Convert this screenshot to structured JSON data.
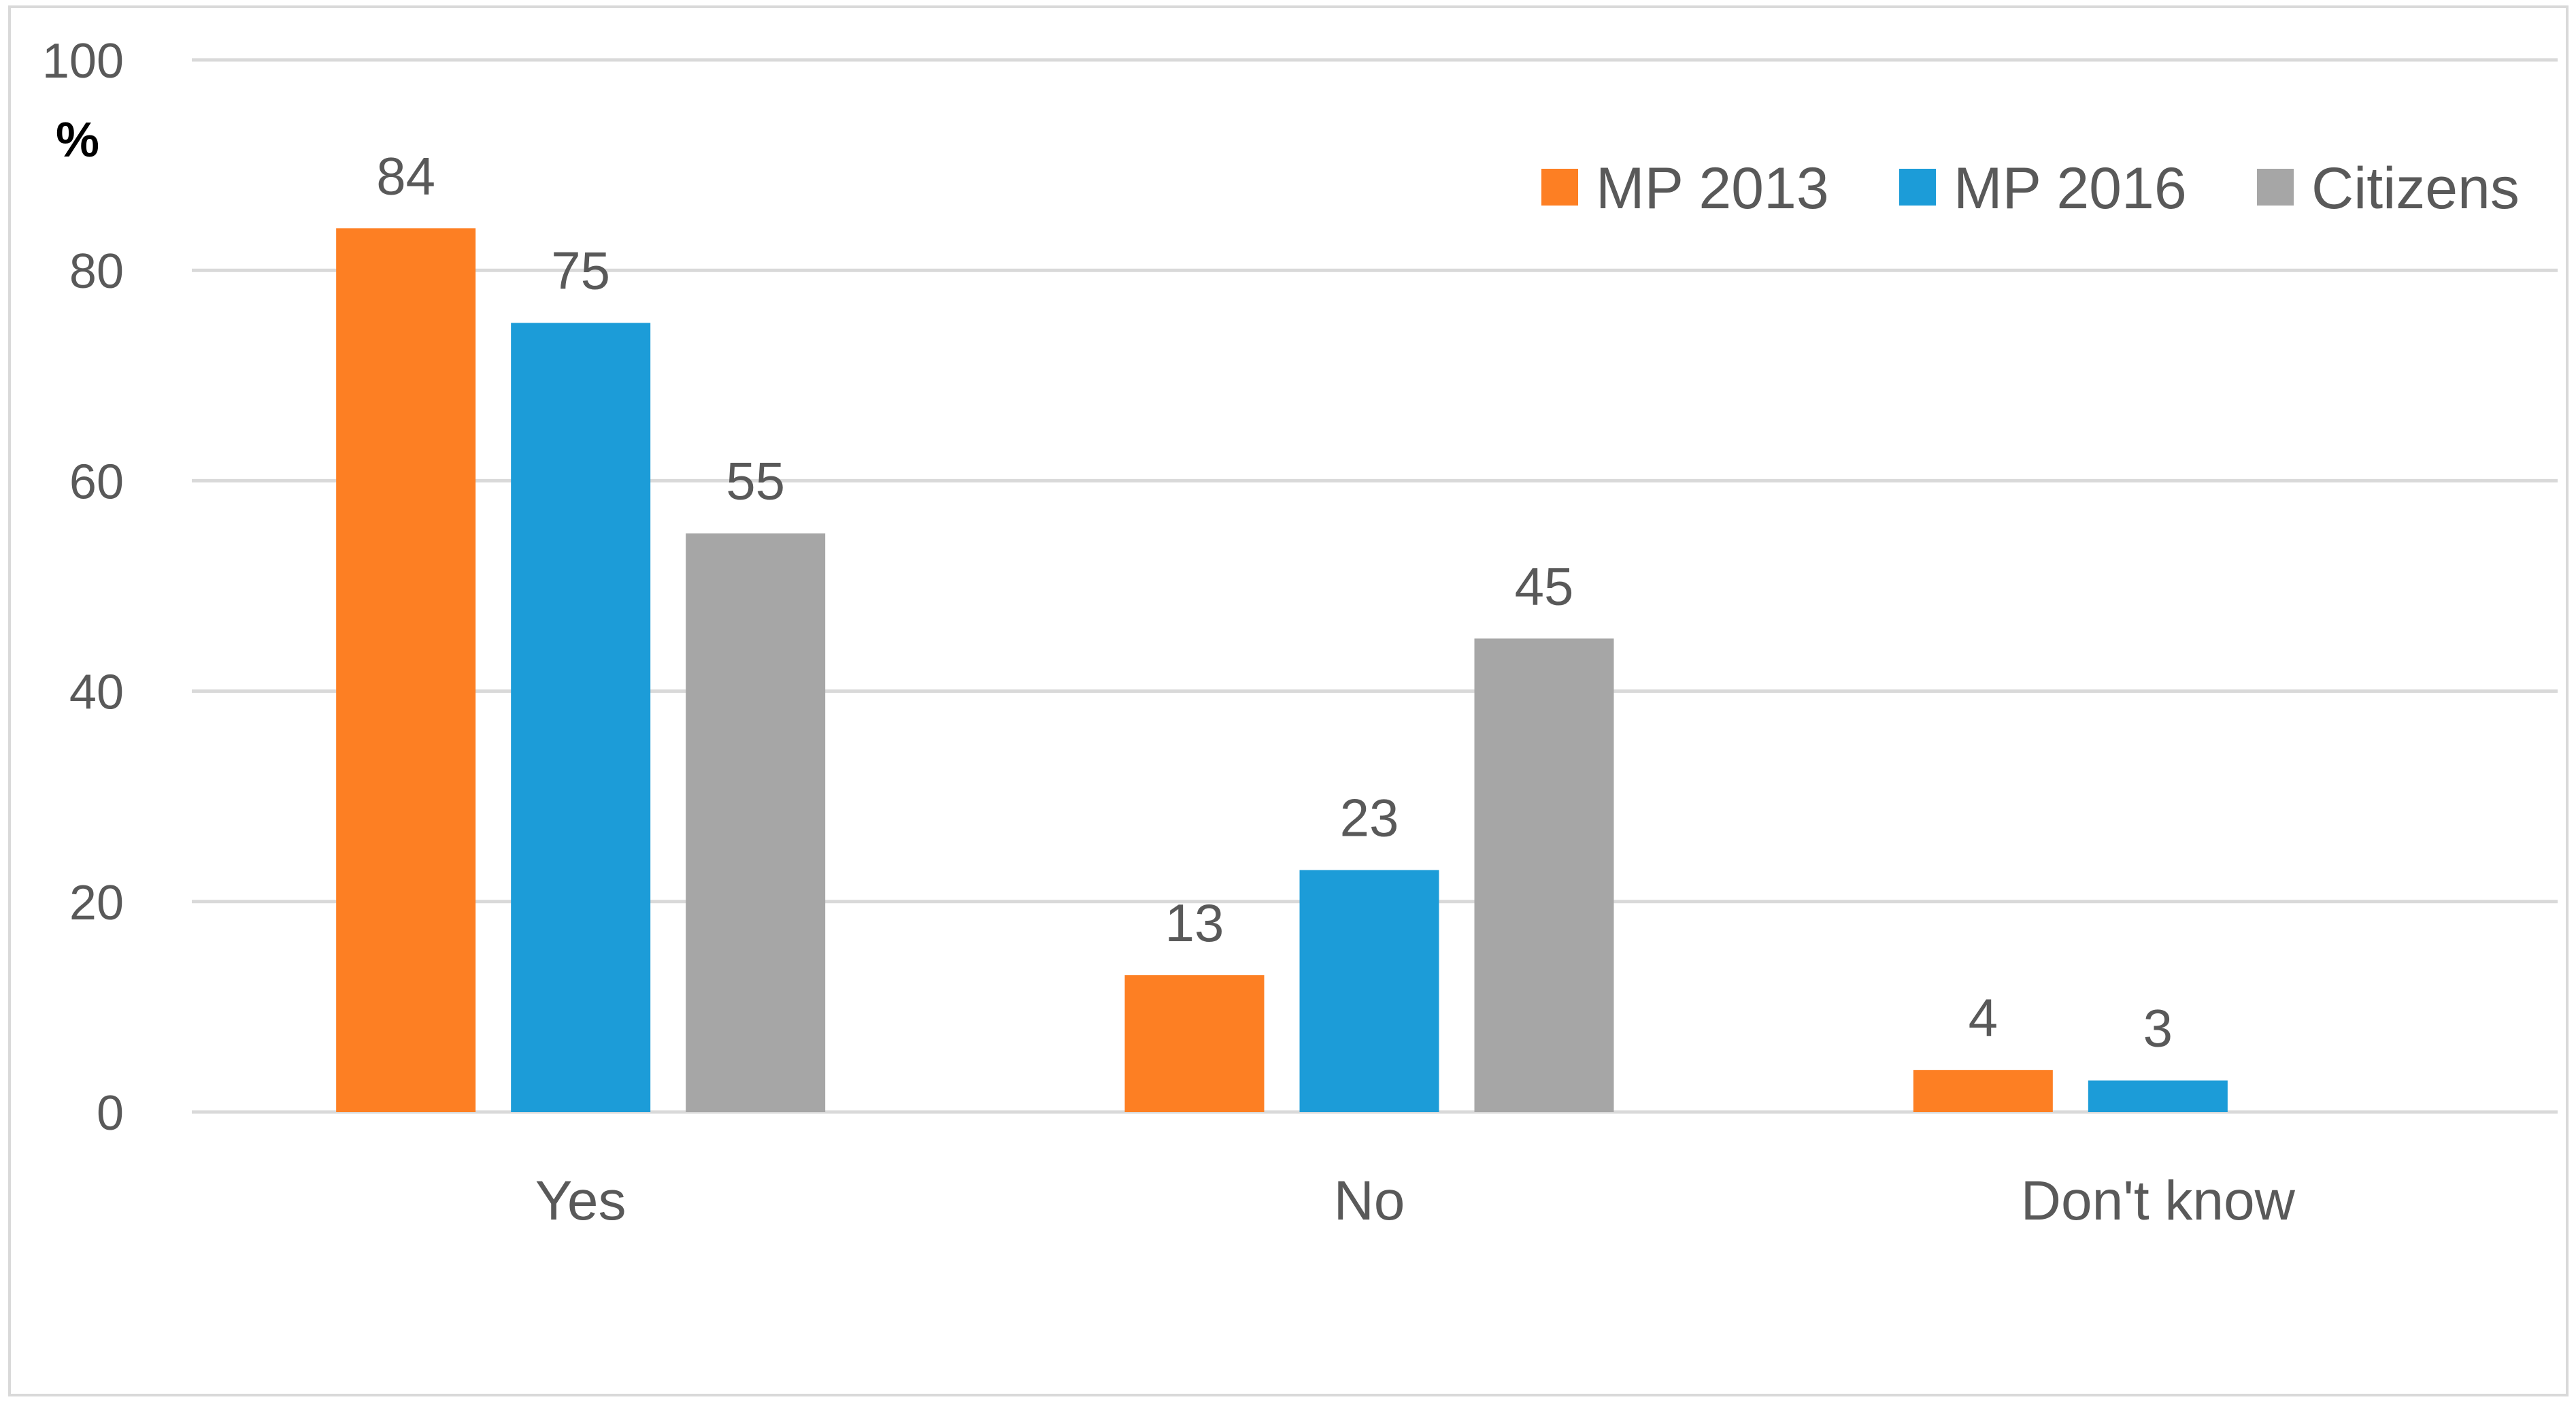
{
  "chart_data": {
    "type": "bar",
    "title": "",
    "xlabel": "",
    "ylabel": "%",
    "ylim": [
      0,
      100
    ],
    "yticks": [
      0,
      20,
      40,
      60,
      80,
      100
    ],
    "grid": true,
    "legend_position": "top-right",
    "categories": [
      "Yes",
      "No",
      "Don't know"
    ],
    "series": [
      {
        "name": "MP 2013",
        "color": "#FD7F23",
        "values": [
          84,
          13,
          4
        ]
      },
      {
        "name": "MP 2016",
        "color": "#1C9CD8",
        "values": [
          75,
          23,
          3
        ]
      },
      {
        "name": "Citizens",
        "color": "#A6A6A6",
        "values": [
          55,
          45,
          null
        ]
      }
    ]
  }
}
